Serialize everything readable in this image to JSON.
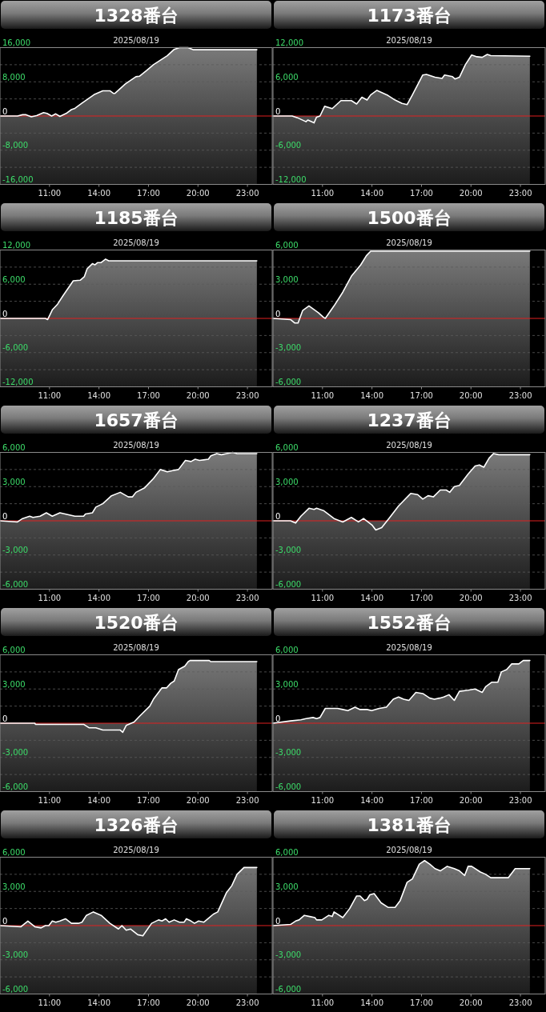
{
  "chart_data": [
    {
      "type": "area",
      "title": "1328番台",
      "subtitle": "2025/08/19",
      "color": "#ffffff",
      "grid": "y",
      "xlim": [
        8,
        24.5
      ],
      "ylim": [
        -16000,
        16000
      ],
      "xticks": [
        {
          "value": 11,
          "label": "11:00"
        },
        {
          "value": 14,
          "label": "14:00"
        },
        {
          "value": 17,
          "label": "17:00"
        },
        {
          "value": 20,
          "label": "20:00"
        },
        {
          "value": 23,
          "label": "23:00"
        }
      ],
      "yticks": [
        {
          "value": 16000,
          "label": "16,000"
        },
        {
          "value": 12000,
          "label": null
        },
        {
          "value": 8000,
          "label": "8,000"
        },
        {
          "value": 4000,
          "label": null
        },
        {
          "value": 0,
          "label": "0"
        },
        {
          "value": -4000,
          "label": null
        },
        {
          "value": -8000,
          "label": "-8,000"
        },
        {
          "value": -12000,
          "label": null
        },
        {
          "value": -16000,
          "label": "-16,000"
        }
      ],
      "ref_lines": [
        {
          "axis": "y",
          "value": 0,
          "color": "#e02020"
        }
      ],
      "x": [
        8.0,
        9.06,
        9.37,
        9.58,
        9.9,
        10.22,
        10.64,
        10.85,
        11.13,
        11.38,
        11.63,
        12.01,
        12.33,
        12.54,
        12.97,
        13.7,
        14.23,
        14.66,
        14.87,
        14.97,
        15.6,
        16.24,
        16.45,
        16.87,
        17.3,
        18.14,
        18.56,
        18.88,
        19.4,
        19.73,
        23.57
      ],
      "values": [
        0,
        0,
        300,
        300,
        -200,
        100,
        800,
        600,
        0,
        500,
        -100,
        600,
        1500,
        1800,
        3000,
        5000,
        5900,
        5900,
        5300,
        5300,
        7500,
        9200,
        9300,
        10600,
        12000,
        14100,
        15600,
        16000,
        16000,
        15500,
        15500
      ]
    },
    {
      "type": "area",
      "title": "1173番台",
      "subtitle": "2025/08/19",
      "color": "#ffffff",
      "grid": "y",
      "xlim": [
        8,
        24.5
      ],
      "ylim": [
        -12000,
        12000
      ],
      "xticks": [
        {
          "value": 11,
          "label": "11:00"
        },
        {
          "value": 14,
          "label": "14:00"
        },
        {
          "value": 17,
          "label": "17:00"
        },
        {
          "value": 20,
          "label": "20:00"
        },
        {
          "value": 23,
          "label": "23:00"
        }
      ],
      "yticks": [
        {
          "value": 12000,
          "label": "12,000"
        },
        {
          "value": 9000,
          "label": null
        },
        {
          "value": 6000,
          "label": "6,000"
        },
        {
          "value": 3000,
          "label": null
        },
        {
          "value": 0,
          "label": "0"
        },
        {
          "value": -3000,
          "label": null
        },
        {
          "value": -6000,
          "label": "-6,000"
        },
        {
          "value": -9000,
          "label": null
        },
        {
          "value": -12000,
          "label": "-12,000"
        }
      ],
      "ref_lines": [
        {
          "axis": "y",
          "value": 0,
          "color": "#e02020"
        }
      ],
      "x": [
        8.0,
        9.16,
        9.48,
        10.0,
        10.11,
        10.49,
        10.64,
        10.85,
        11.13,
        11.59,
        12.12,
        12.75,
        13.07,
        13.39,
        13.7,
        13.92,
        14.3,
        14.97,
        15.4,
        15.82,
        16.13,
        16.45,
        17.08,
        17.3,
        17.82,
        18.25,
        18.4,
        18.88,
        19.03,
        19.3,
        19.66,
        20.04,
        20.36,
        20.68,
        20.99,
        21.2,
        23.57
      ],
      "values": [
        0,
        0,
        -300,
        -1000,
        -700,
        -1200,
        -200,
        0,
        1700,
        1300,
        2700,
        2700,
        2100,
        3300,
        2800,
        3700,
        4500,
        3600,
        2800,
        2200,
        2000,
        3700,
        7200,
        7300,
        6800,
        6600,
        7200,
        6900,
        6500,
        6800,
        9000,
        10700,
        10400,
        10300,
        10800,
        10600,
        10500
      ]
    },
    {
      "type": "area",
      "title": "1185番台",
      "subtitle": "2025/08/19",
      "color": "#ffffff",
      "grid": "y",
      "xlim": [
        8,
        24.5
      ],
      "ylim": [
        -12000,
        12000
      ],
      "xticks": [
        {
          "value": 11,
          "label": "11:00"
        },
        {
          "value": 14,
          "label": "14:00"
        },
        {
          "value": 17,
          "label": "17:00"
        },
        {
          "value": 20,
          "label": "20:00"
        },
        {
          "value": 23,
          "label": "23:00"
        }
      ],
      "yticks": [
        {
          "value": 12000,
          "label": "12,000"
        },
        {
          "value": 9000,
          "label": null
        },
        {
          "value": 6000,
          "label": "6,000"
        },
        {
          "value": 3000,
          "label": null
        },
        {
          "value": 0,
          "label": "0"
        },
        {
          "value": -3000,
          "label": null
        },
        {
          "value": -6000,
          "label": "-6,000"
        },
        {
          "value": -9000,
          "label": null
        },
        {
          "value": -12000,
          "label": "-12,000"
        }
      ],
      "ref_lines": [
        {
          "axis": "y",
          "value": 0,
          "color": "#e02020"
        }
      ],
      "x": [
        8.0,
        10.75,
        10.89,
        11.17,
        11.49,
        11.8,
        12.44,
        12.86,
        13.11,
        13.28,
        13.6,
        13.75,
        13.92,
        14.13,
        14.4,
        14.59,
        23.57
      ],
      "values": [
        0,
        0,
        -200,
        1500,
        2500,
        3900,
        6600,
        6700,
        7300,
        8700,
        9600,
        9400,
        9800,
        9800,
        10400,
        10100,
        10100
      ]
    },
    {
      "type": "area",
      "title": "1500番台",
      "subtitle": "2025/08/19",
      "color": "#ffffff",
      "grid": "y",
      "xlim": [
        8,
        24.5
      ],
      "ylim": [
        -6000,
        6000
      ],
      "xticks": [
        {
          "value": 11,
          "label": "11:00"
        },
        {
          "value": 14,
          "label": "14:00"
        },
        {
          "value": 17,
          "label": "17:00"
        },
        {
          "value": 20,
          "label": "20:00"
        },
        {
          "value": 23,
          "label": "23:00"
        }
      ],
      "yticks": [
        {
          "value": 6000,
          "label": "6,000"
        },
        {
          "value": 4500,
          "label": null
        },
        {
          "value": 3000,
          "label": "3,000"
        },
        {
          "value": 1500,
          "label": null
        },
        {
          "value": 0,
          "label": "0"
        },
        {
          "value": -1500,
          "label": null
        },
        {
          "value": -3000,
          "label": "-3,000"
        },
        {
          "value": -4500,
          "label": null
        },
        {
          "value": -6000,
          "label": "-6,000"
        }
      ],
      "ref_lines": [
        {
          "axis": "y",
          "value": 0,
          "color": "#e02020"
        }
      ],
      "x": [
        8.0,
        9.06,
        9.31,
        9.52,
        9.8,
        10.18,
        10.75,
        11.06,
        11.17,
        11.7,
        12.23,
        12.75,
        13.32,
        13.66,
        13.92,
        23.57
      ],
      "values": [
        0,
        -100,
        -400,
        -400,
        700,
        1100,
        500,
        100,
        0,
        1100,
        2300,
        3700,
        4700,
        5500,
        5900,
        5900
      ]
    },
    {
      "type": "area",
      "title": "1657番台",
      "subtitle": "2025/08/19",
      "color": "#ffffff",
      "grid": "y",
      "xlim": [
        8,
        24.5
      ],
      "ylim": [
        -6000,
        6000
      ],
      "xticks": [
        {
          "value": 11,
          "label": "11:00"
        },
        {
          "value": 14,
          "label": "14:00"
        },
        {
          "value": 17,
          "label": "17:00"
        },
        {
          "value": 20,
          "label": "20:00"
        },
        {
          "value": 23,
          "label": "23:00"
        }
      ],
      "yticks": [
        {
          "value": 6000,
          "label": "6,000"
        },
        {
          "value": 4500,
          "label": null
        },
        {
          "value": 3000,
          "label": "3,000"
        },
        {
          "value": 1500,
          "label": null
        },
        {
          "value": 0,
          "label": "0"
        },
        {
          "value": -1500,
          "label": null
        },
        {
          "value": -3000,
          "label": "-3,000"
        },
        {
          "value": -4500,
          "label": null
        },
        {
          "value": -6000,
          "label": "-6,000"
        }
      ],
      "ref_lines": [
        {
          "axis": "y",
          "value": 0,
          "color": "#e02020"
        }
      ],
      "x": [
        8.0,
        9.06,
        9.37,
        9.8,
        10.0,
        10.43,
        10.81,
        11.17,
        11.63,
        12.54,
        13.07,
        13.18,
        13.6,
        13.81,
        14.23,
        14.76,
        15.29,
        15.78,
        16.03,
        16.24,
        16.77,
        17.3,
        17.72,
        18.14,
        18.46,
        18.82,
        19.24,
        19.58,
        19.83,
        20.09,
        20.63,
        20.78,
        21.14,
        21.42,
        21.73,
        22.11,
        22.37,
        23.57
      ],
      "values": [
        0,
        -100,
        200,
        400,
        300,
        400,
        700,
        400,
        700,
        400,
        400,
        600,
        700,
        1200,
        1500,
        2200,
        2500,
        2100,
        2100,
        2500,
        2900,
        3700,
        4500,
        4300,
        4400,
        4500,
        5300,
        5200,
        5400,
        5300,
        5400,
        5700,
        5900,
        5800,
        5900,
        6000,
        5900,
        5900
      ]
    },
    {
      "type": "area",
      "title": "1237番台",
      "subtitle": "2025/08/19",
      "color": "#ffffff",
      "grid": "y",
      "xlim": [
        8,
        24.5
      ],
      "ylim": [
        -6000,
        6000
      ],
      "xticks": [
        {
          "value": 11,
          "label": "11:00"
        },
        {
          "value": 14,
          "label": "14:00"
        },
        {
          "value": 17,
          "label": "17:00"
        },
        {
          "value": 20,
          "label": "20:00"
        },
        {
          "value": 23,
          "label": "23:00"
        }
      ],
      "yticks": [
        {
          "value": 6000,
          "label": "6,000"
        },
        {
          "value": 4500,
          "label": null
        },
        {
          "value": 3000,
          "label": "3,000"
        },
        {
          "value": 1500,
          "label": null
        },
        {
          "value": 0,
          "label": "0"
        },
        {
          "value": -1500,
          "label": null
        },
        {
          "value": -3000,
          "label": "-3,000"
        },
        {
          "value": -4500,
          "label": null
        },
        {
          "value": -6000,
          "label": "-6,000"
        }
      ],
      "ref_lines": [
        {
          "axis": "y",
          "value": 0,
          "color": "#e02020"
        }
      ],
      "x": [
        8.0,
        9.06,
        9.37,
        9.69,
        10.18,
        10.49,
        10.64,
        11.06,
        11.7,
        12.23,
        12.75,
        13.18,
        13.49,
        14.02,
        14.23,
        14.59,
        15.08,
        15.61,
        16.35,
        16.77,
        17.08,
        17.4,
        17.72,
        18.14,
        18.5,
        18.71,
        18.99,
        19.3,
        19.83,
        20.25,
        20.51,
        20.78,
        21.1,
        21.37,
        21.69,
        23.57
      ],
      "values": [
        0,
        0,
        -200,
        400,
        1100,
        1000,
        1100,
        900,
        200,
        -100,
        300,
        -100,
        200,
        -400,
        -800,
        -600,
        300,
        1300,
        2400,
        2300,
        1900,
        2200,
        2100,
        2700,
        2700,
        2500,
        3000,
        3100,
        4100,
        4800,
        4900,
        4700,
        5500,
        5900,
        5800,
        5800
      ]
    },
    {
      "type": "area",
      "title": "1520番台",
      "subtitle": "2025/08/19",
      "color": "#ffffff",
      "grid": "y",
      "xlim": [
        8,
        24.5
      ],
      "ylim": [
        -6000,
        6000
      ],
      "xticks": [
        {
          "value": 11,
          "label": "11:00"
        },
        {
          "value": 14,
          "label": "14:00"
        },
        {
          "value": 17,
          "label": "17:00"
        },
        {
          "value": 20,
          "label": "20:00"
        },
        {
          "value": 23,
          "label": "23:00"
        }
      ],
      "yticks": [
        {
          "value": 6000,
          "label": "6,000"
        },
        {
          "value": 4500,
          "label": null
        },
        {
          "value": 3000,
          "label": "3,000"
        },
        {
          "value": 1500,
          "label": null
        },
        {
          "value": 0,
          "label": "0"
        },
        {
          "value": -1500,
          "label": null
        },
        {
          "value": -3000,
          "label": "-3,000"
        },
        {
          "value": -4500,
          "label": null
        },
        {
          "value": -6000,
          "label": "-6,000"
        }
      ],
      "ref_lines": [
        {
          "axis": "y",
          "value": 0,
          "color": "#e02020"
        }
      ],
      "x": [
        8.0,
        10.11,
        10.15,
        13.07,
        13.39,
        13.81,
        14.23,
        15.29,
        15.44,
        15.65,
        16.13,
        16.45,
        17.08,
        17.3,
        17.82,
        18.1,
        18.35,
        18.56,
        18.82,
        19.2,
        19.41,
        19.52,
        20.68,
        20.78,
        23.57
      ],
      "values": [
        0,
        0,
        -100,
        -100,
        -400,
        -400,
        -600,
        -600,
        -800,
        -200,
        100,
        600,
        1500,
        2100,
        3100,
        3100,
        3500,
        3700,
        4700,
        5000,
        5400,
        5500,
        5500,
        5400,
        5400
      ]
    },
    {
      "type": "area",
      "title": "1552番台",
      "subtitle": "2025/08/19",
      "color": "#ffffff",
      "grid": "y",
      "xlim": [
        8,
        24.5
      ],
      "ylim": [
        -6000,
        6000
      ],
      "xticks": [
        {
          "value": 11,
          "label": "11:00"
        },
        {
          "value": 14,
          "label": "14:00"
        },
        {
          "value": 17,
          "label": "17:00"
        },
        {
          "value": 20,
          "label": "20:00"
        },
        {
          "value": 23,
          "label": "23:00"
        }
      ],
      "yticks": [
        {
          "value": 6000,
          "label": "6,000"
        },
        {
          "value": 4500,
          "label": null
        },
        {
          "value": 3000,
          "label": "3,000"
        },
        {
          "value": 1500,
          "label": null
        },
        {
          "value": 0,
          "label": "0"
        },
        {
          "value": -1500,
          "label": null
        },
        {
          "value": -3000,
          "label": "-3,000"
        },
        {
          "value": -4500,
          "label": null
        },
        {
          "value": -6000,
          "label": "-6,000"
        }
      ],
      "ref_lines": [
        {
          "axis": "y",
          "value": 0,
          "color": "#e02020"
        }
      ],
      "x": [
        8.0,
        9.06,
        9.69,
        10.0,
        10.43,
        10.64,
        10.85,
        11.17,
        11.49,
        11.91,
        12.23,
        12.54,
        12.97,
        13.28,
        13.7,
        13.98,
        14.44,
        14.87,
        15.29,
        15.61,
        15.92,
        16.24,
        16.66,
        17.08,
        17.5,
        17.78,
        18.1,
        18.35,
        18.67,
        18.99,
        19.3,
        19.83,
        20.25,
        20.68,
        20.89,
        21.27,
        21.63,
        21.84,
        22.16,
        22.47,
        22.9,
        23.17,
        23.57
      ],
      "values": [
        0,
        200,
        300,
        400,
        500,
        400,
        500,
        1300,
        1300,
        1300,
        1200,
        1100,
        1400,
        1200,
        1200,
        1100,
        1300,
        1400,
        2100,
        2300,
        2100,
        2000,
        2700,
        2600,
        2200,
        2100,
        2200,
        2300,
        2500,
        2000,
        2800,
        2900,
        3000,
        2700,
        3200,
        3600,
        3600,
        4500,
        4700,
        5200,
        5200,
        5500,
        5500
      ]
    },
    {
      "type": "area",
      "title": "1326番台",
      "subtitle": "2025/08/19",
      "color": "#ffffff",
      "grid": "y",
      "xlim": [
        8,
        24.5
      ],
      "ylim": [
        -6000,
        6000
      ],
      "xticks": [
        {
          "value": 11,
          "label": "11:00"
        },
        {
          "value": 14,
          "label": "14:00"
        },
        {
          "value": 17,
          "label": "17:00"
        },
        {
          "value": 20,
          "label": "20:00"
        },
        {
          "value": 23,
          "label": "23:00"
        }
      ],
      "yticks": [
        {
          "value": 6000,
          "label": "6,000"
        },
        {
          "value": 4500,
          "label": null
        },
        {
          "value": 3000,
          "label": "3,000"
        },
        {
          "value": 1500,
          "label": null
        },
        {
          "value": 0,
          "label": "0"
        },
        {
          "value": -1500,
          "label": null
        },
        {
          "value": -3000,
          "label": "-3,000"
        },
        {
          "value": -4500,
          "label": null
        },
        {
          "value": -6000,
          "label": "-6,000"
        }
      ],
      "ref_lines": [
        {
          "axis": "y",
          "value": 0,
          "color": "#e02020"
        }
      ],
      "x": [
        8.0,
        9.27,
        9.69,
        10.11,
        10.49,
        10.75,
        10.96,
        11.17,
        11.38,
        11.63,
        11.97,
        12.33,
        12.75,
        12.97,
        13.24,
        13.66,
        14.13,
        14.66,
        15.18,
        15.39,
        15.65,
        15.92,
        16.35,
        16.66,
        17.19,
        17.61,
        17.82,
        18.04,
        18.25,
        18.56,
        18.88,
        19.16,
        19.3,
        19.58,
        19.79,
        20.04,
        20.36,
        20.68,
        20.93,
        21.2,
        21.73,
        22.05,
        22.37,
        22.79,
        23.0,
        23.57
      ],
      "values": [
        0,
        -100,
        400,
        -100,
        -200,
        0,
        0,
        400,
        300,
        400,
        600,
        200,
        200,
        300,
        900,
        1200,
        900,
        200,
        -300,
        0,
        -400,
        -300,
        -800,
        -900,
        200,
        500,
        400,
        600,
        300,
        500,
        300,
        300,
        600,
        400,
        200,
        400,
        300,
        700,
        1000,
        1200,
        2900,
        3500,
        4500,
        5100,
        5100,
        5100
      ]
    },
    {
      "type": "area",
      "title": "1381番台",
      "subtitle": "2025/08/19",
      "color": "#ffffff",
      "grid": "y",
      "xlim": [
        8,
        24.5
      ],
      "ylim": [
        -6000,
        6000
      ],
      "xticks": [
        {
          "value": 11,
          "label": "11:00"
        },
        {
          "value": 14,
          "label": "14:00"
        },
        {
          "value": 17,
          "label": "17:00"
        },
        {
          "value": 20,
          "label": "20:00"
        },
        {
          "value": 23,
          "label": "23:00"
        }
      ],
      "yticks": [
        {
          "value": 6000,
          "label": "6,000"
        },
        {
          "value": 4500,
          "label": null
        },
        {
          "value": 3000,
          "label": "3,000"
        },
        {
          "value": 1500,
          "label": null
        },
        {
          "value": 0,
          "label": "0"
        },
        {
          "value": -1500,
          "label": null
        },
        {
          "value": -3000,
          "label": "-3,000"
        },
        {
          "value": -4500,
          "label": null
        },
        {
          "value": -6000,
          "label": "-6,000"
        }
      ],
      "ref_lines": [
        {
          "axis": "y",
          "value": 0,
          "color": "#e02020"
        }
      ],
      "x": [
        8.0,
        9.06,
        9.37,
        9.58,
        9.9,
        10.22,
        10.54,
        10.64,
        10.96,
        11.38,
        11.59,
        11.7,
        12.23,
        12.65,
        13.07,
        13.28,
        13.54,
        13.7,
        13.87,
        14.13,
        14.55,
        14.97,
        15.4,
        15.71,
        16.13,
        16.45,
        16.87,
        17.19,
        17.5,
        17.82,
        18.14,
        18.56,
        18.99,
        19.3,
        19.62,
        19.83,
        20.04,
        20.57,
        20.89,
        21.2,
        22.26,
        22.68,
        23.57
      ],
      "values": [
        0,
        100,
        400,
        500,
        900,
        800,
        700,
        500,
        500,
        900,
        800,
        1200,
        700,
        1500,
        2600,
        2600,
        2200,
        2300,
        2700,
        2800,
        2000,
        1600,
        1600,
        2200,
        3800,
        4100,
        5400,
        5700,
        5400,
        5000,
        4800,
        5200,
        5000,
        4800,
        4400,
        5200,
        5200,
        4700,
        4500,
        4200,
        4200,
        5000,
        5000
      ]
    }
  ]
}
